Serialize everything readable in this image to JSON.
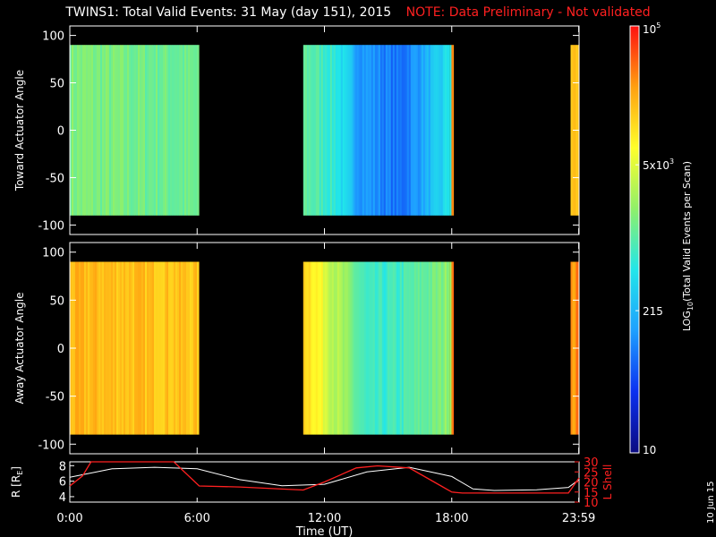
{
  "chart_data": {
    "type": "heatmap",
    "title": "TWINS1: Total Valid Events: 31 May (day 151), 2015",
    "note": "NOTE: Data Preliminary - Not validated",
    "datestamp": "10 Jun 15",
    "colorbar": {
      "label": "LOG10(Total Valid Events per Scan)",
      "label_main": "LOG",
      "label_sub": "10",
      "label_rest": "(Total Valid Events per Scan)",
      "scale": "log",
      "range": [
        10,
        100000
      ],
      "ticks": [
        {
          "value": 10,
          "label": "10"
        },
        {
          "value": 215,
          "label": "215"
        },
        {
          "value": 5000,
          "label": "5x10",
          "sup": "3"
        },
        {
          "value": 100000,
          "label": "10",
          "sup": "5"
        }
      ],
      "colors": [
        "#0a0a80",
        "#0a30f0",
        "#1ea0ff",
        "#21e6ea",
        "#8ff06a",
        "#ffff2a",
        "#ffa010",
        "#ff1010"
      ]
    },
    "panels": [
      {
        "name": "toward",
        "ylabel": "Toward Actuator Angle",
        "ylim": [
          -110,
          110
        ],
        "yticks": [
          100,
          50,
          0,
          -50,
          -100
        ],
        "data_range_deg": [
          -90,
          90
        ],
        "coverage_hours": [
          [
            0.0,
            6.1
          ],
          [
            11.0,
            17.9
          ],
          [
            17.9,
            18.1
          ],
          [
            23.6,
            24.0
          ]
        ],
        "profile": [
          [
            0,
            0.55
          ],
          [
            6,
            0.52
          ],
          [
            11,
            0.52
          ],
          [
            12.5,
            0.45
          ],
          [
            13.5,
            0.3
          ],
          [
            15.5,
            0.22
          ],
          [
            17.5,
            0.38
          ],
          [
            17.9,
            0.45
          ],
          [
            17.91,
            0.86
          ],
          [
            18.1,
            0.86
          ],
          [
            23.6,
            0.8
          ],
          [
            24,
            0.8
          ]
        ]
      },
      {
        "name": "away",
        "ylabel": "Away Actuator Angle",
        "ylim": [
          -110,
          110
        ],
        "yticks": [
          100,
          50,
          0,
          -50,
          -100
        ],
        "data_range_deg": [
          -90,
          90
        ],
        "coverage_hours": [
          [
            0.0,
            6.1
          ],
          [
            11.0,
            17.9
          ],
          [
            17.9,
            18.1
          ],
          [
            23.6,
            24.0
          ]
        ],
        "profile": [
          [
            0,
            0.82
          ],
          [
            6,
            0.8
          ],
          [
            11,
            0.8
          ],
          [
            12.5,
            0.62
          ],
          [
            14,
            0.45
          ],
          [
            15.5,
            0.47
          ],
          [
            17.5,
            0.55
          ],
          [
            17.9,
            0.6
          ],
          [
            17.91,
            0.92
          ],
          [
            18.1,
            0.92
          ],
          [
            23.6,
            0.85
          ],
          [
            24,
            0.9
          ]
        ]
      }
    ],
    "orbit_panel": {
      "left_label": "R [R",
      "left_label_sub": "E",
      "left_label_end": "]",
      "left_ticks": [
        4,
        6,
        8
      ],
      "left_ylim": [
        3.3,
        8.5
      ],
      "right_label": "L Shell",
      "right_ticks": [
        10,
        15,
        20,
        25,
        30
      ],
      "right_ylim": [
        10,
        30
      ],
      "r_series": {
        "name": "R",
        "x_hours": [
          0,
          2,
          4,
          6,
          8,
          10,
          12,
          14,
          16,
          18,
          19,
          20,
          22,
          23.5,
          24
        ],
        "values": [
          6.5,
          7.6,
          7.8,
          7.6,
          6.2,
          5.4,
          5.6,
          7.2,
          7.8,
          6.6,
          5.0,
          4.8,
          4.9,
          5.2,
          6.2
        ]
      },
      "l_series": {
        "name": "L Shell",
        "x_hours": [
          0,
          0.6,
          1.0,
          4.9,
          6.1,
          8,
          10,
          11.0,
          12,
          13.5,
          14.5,
          16,
          17.5,
          18.0,
          18.5,
          20,
          22,
          23.5,
          24
        ],
        "values": [
          18,
          23,
          30,
          30,
          18,
          17.5,
          16.5,
          16,
          20,
          27,
          28,
          27,
          18,
          15,
          14.5,
          14.5,
          14.5,
          14.5,
          22
        ]
      }
    },
    "xaxis": {
      "label": "Time (UT)",
      "xlim_hours": [
        0,
        24
      ],
      "ticks": [
        {
          "hour": 0,
          "label": "0:00"
        },
        {
          "hour": 6,
          "label": "6:00"
        },
        {
          "hour": 12,
          "label": "12:00"
        },
        {
          "hour": 18,
          "label": "18:00"
        },
        {
          "hour": 23.983,
          "label": "23:59"
        }
      ]
    }
  }
}
